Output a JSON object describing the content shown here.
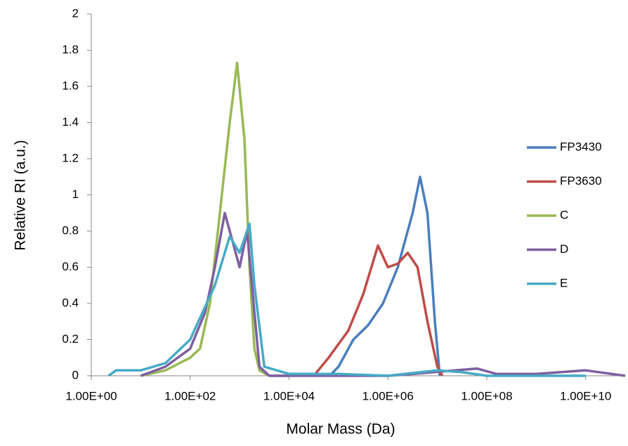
{
  "chart_data": {
    "type": "line",
    "xscale": "log",
    "xlabel": "Molar Mass (Da)",
    "ylabel": "Relative RI (a.u.)",
    "xlim": [
      1,
      63100000000
    ],
    "ylim": [
      0,
      2
    ],
    "xticks": [
      {
        "value": 1,
        "label": "1.00E+00"
      },
      {
        "value": 100,
        "label": "1.00E+02"
      },
      {
        "value": 10000,
        "label": "1.00E+04"
      },
      {
        "value": 1000000,
        "label": "1.00E+06"
      },
      {
        "value": 100000000,
        "label": "1.00E+08"
      },
      {
        "value": 10000000000,
        "label": "1.00E+10"
      }
    ],
    "yticks": [
      0,
      0.2,
      0.4,
      0.6,
      0.8,
      1,
      1.2,
      1.4,
      1.6,
      1.8,
      2
    ],
    "legend": "right",
    "series": [
      {
        "name": "FP3430",
        "color": "#4a7ebb",
        "x": [
          66069,
          100000,
          199526,
          398107,
          794328,
          1584893,
          3162278,
          4466836,
          6309573,
          8912509,
          11220185
        ],
        "values": [
          0,
          0.05,
          0.2,
          0.28,
          0.4,
          0.6,
          0.9,
          1.1,
          0.9,
          0.3,
          0
        ]
      },
      {
        "name": "FP3630",
        "color": "#be4b48",
        "x": [
          31623,
          63096,
          158489,
          316228,
          630957,
          1000000,
          1584893,
          2511886,
          3981072,
          6309573,
          10000000,
          12589254
        ],
        "values": [
          0,
          0.1,
          0.25,
          0.45,
          0.72,
          0.6,
          0.62,
          0.68,
          0.6,
          0.3,
          0.05,
          0
        ]
      },
      {
        "name": "C",
        "color": "#98b954",
        "x": [
          10,
          31.6,
          100,
          158,
          251,
          398,
          631,
          891,
          1259,
          1585,
          1995,
          2512,
          3981,
          10000
        ],
        "values": [
          0,
          0.03,
          0.1,
          0.15,
          0.4,
          0.9,
          1.4,
          1.73,
          1.3,
          0.6,
          0.15,
          0.03,
          0,
          0
        ]
      },
      {
        "name": "D",
        "color": "#7d5fa0",
        "x": [
          10,
          31.6,
          100,
          200,
          316,
          501,
          708,
          1000,
          1413,
          1995,
          2512,
          3981,
          1000000,
          3162278,
          63095734,
          158489319,
          1000000000,
          10000000000,
          63100000000
        ],
        "values": [
          0,
          0.05,
          0.15,
          0.35,
          0.6,
          0.9,
          0.75,
          0.6,
          0.8,
          0.35,
          0.05,
          0,
          0,
          0.01,
          0.04,
          0.01,
          0.01,
          0.03,
          0
        ]
      },
      {
        "name": "E",
        "color": "#46aac5",
        "x": [
          2.24,
          3.16,
          10,
          31.6,
          100,
          316,
          631,
          1000,
          1585,
          1995,
          3162,
          10000,
          100000,
          1000000,
          10000000,
          31622777,
          100000000,
          10000000000
        ],
        "values": [
          0,
          0.03,
          0.03,
          0.07,
          0.2,
          0.5,
          0.77,
          0.68,
          0.84,
          0.5,
          0.05,
          0.01,
          0.01,
          0,
          0.03,
          0.02,
          0,
          0
        ]
      }
    ]
  }
}
